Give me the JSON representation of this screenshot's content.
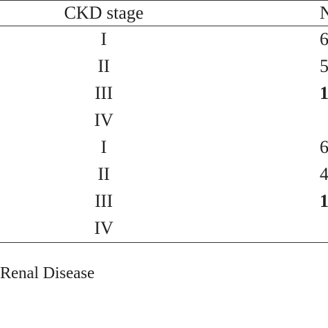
{
  "table": {
    "header": {
      "stage": "CKD stage",
      "clipped": "N"
    },
    "rows": [
      {
        "stage": "I",
        "clipped": "6",
        "bold": false
      },
      {
        "stage": "II",
        "clipped": "5",
        "bold": false
      },
      {
        "stage": "III",
        "clipped": "1",
        "bold": true
      },
      {
        "stage": "IV",
        "clipped": "",
        "bold": false
      },
      {
        "stage": "I",
        "clipped": "6",
        "bold": false
      },
      {
        "stage": "II",
        "clipped": "4",
        "bold": false
      },
      {
        "stage": "III",
        "clipped": "1",
        "bold": true
      },
      {
        "stage": "IV",
        "clipped": "",
        "bold": false
      }
    ]
  },
  "footnote": "Renal Disease"
}
